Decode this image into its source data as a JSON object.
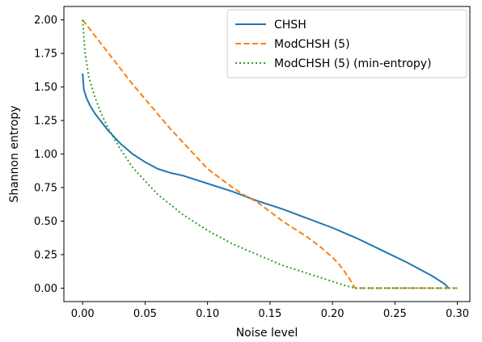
{
  "chart_data": {
    "type": "line",
    "title": "",
    "xlabel": "Noise level",
    "ylabel": "Shannon entropy",
    "xlim": [
      -0.015,
      0.31
    ],
    "ylim": [
      -0.1,
      2.1
    ],
    "xticks": [
      0.0,
      0.05,
      0.1,
      0.15,
      0.2,
      0.25,
      0.3
    ],
    "xtick_labels": [
      "0.00",
      "0.05",
      "0.10",
      "0.15",
      "0.20",
      "0.25",
      "0.30"
    ],
    "yticks": [
      0.0,
      0.25,
      0.5,
      0.75,
      1.0,
      1.25,
      1.5,
      1.75,
      2.0
    ],
    "ytick_labels": [
      "0.00",
      "0.25",
      "0.50",
      "0.75",
      "1.00",
      "1.25",
      "1.50",
      "1.75",
      "2.00"
    ],
    "grid": false,
    "legend_position": "top-right",
    "series": [
      {
        "name": "CHSH",
        "color": "#1f77b4",
        "style": "solid",
        "x": [
          0.0,
          0.001,
          0.003,
          0.006,
          0.01,
          0.015,
          0.02,
          0.03,
          0.04,
          0.05,
          0.06,
          0.07,
          0.08,
          0.1,
          0.12,
          0.14,
          0.16,
          0.18,
          0.2,
          0.22,
          0.24,
          0.26,
          0.28,
          0.29,
          0.293
        ],
        "y": [
          1.6,
          1.48,
          1.42,
          1.36,
          1.3,
          1.24,
          1.18,
          1.08,
          1.0,
          0.94,
          0.89,
          0.86,
          0.84,
          0.78,
          0.72,
          0.65,
          0.59,
          0.52,
          0.45,
          0.37,
          0.28,
          0.19,
          0.09,
          0.03,
          0.0
        ]
      },
      {
        "name": "ModCHSH (5)",
        "color": "#ff7f0e",
        "style": "dashed",
        "x": [
          0.0,
          0.01,
          0.02,
          0.03,
          0.04,
          0.05,
          0.06,
          0.07,
          0.08,
          0.09,
          0.1,
          0.11,
          0.12,
          0.13,
          0.14,
          0.15,
          0.16,
          0.17,
          0.18,
          0.19,
          0.2,
          0.205,
          0.21,
          0.215,
          0.218,
          0.25,
          0.3
        ],
        "y": [
          2.0,
          1.88,
          1.76,
          1.64,
          1.52,
          1.41,
          1.3,
          1.19,
          1.09,
          0.99,
          0.89,
          0.82,
          0.75,
          0.69,
          0.64,
          0.57,
          0.5,
          0.44,
          0.38,
          0.31,
          0.23,
          0.18,
          0.12,
          0.05,
          0.0,
          0.0,
          0.0
        ]
      },
      {
        "name": "ModCHSH (5) (min-entropy)",
        "color": "#2ca02c",
        "style": "dotted",
        "x": [
          0.0,
          0.002,
          0.005,
          0.01,
          0.015,
          0.02,
          0.03,
          0.04,
          0.05,
          0.06,
          0.08,
          0.1,
          0.12,
          0.14,
          0.16,
          0.18,
          0.2,
          0.21,
          0.218,
          0.25,
          0.3
        ],
        "y": [
          2.0,
          1.75,
          1.57,
          1.42,
          1.3,
          1.2,
          1.04,
          0.9,
          0.8,
          0.7,
          0.55,
          0.43,
          0.33,
          0.25,
          0.17,
          0.11,
          0.05,
          0.02,
          0.0,
          0.0,
          0.0
        ]
      }
    ]
  }
}
